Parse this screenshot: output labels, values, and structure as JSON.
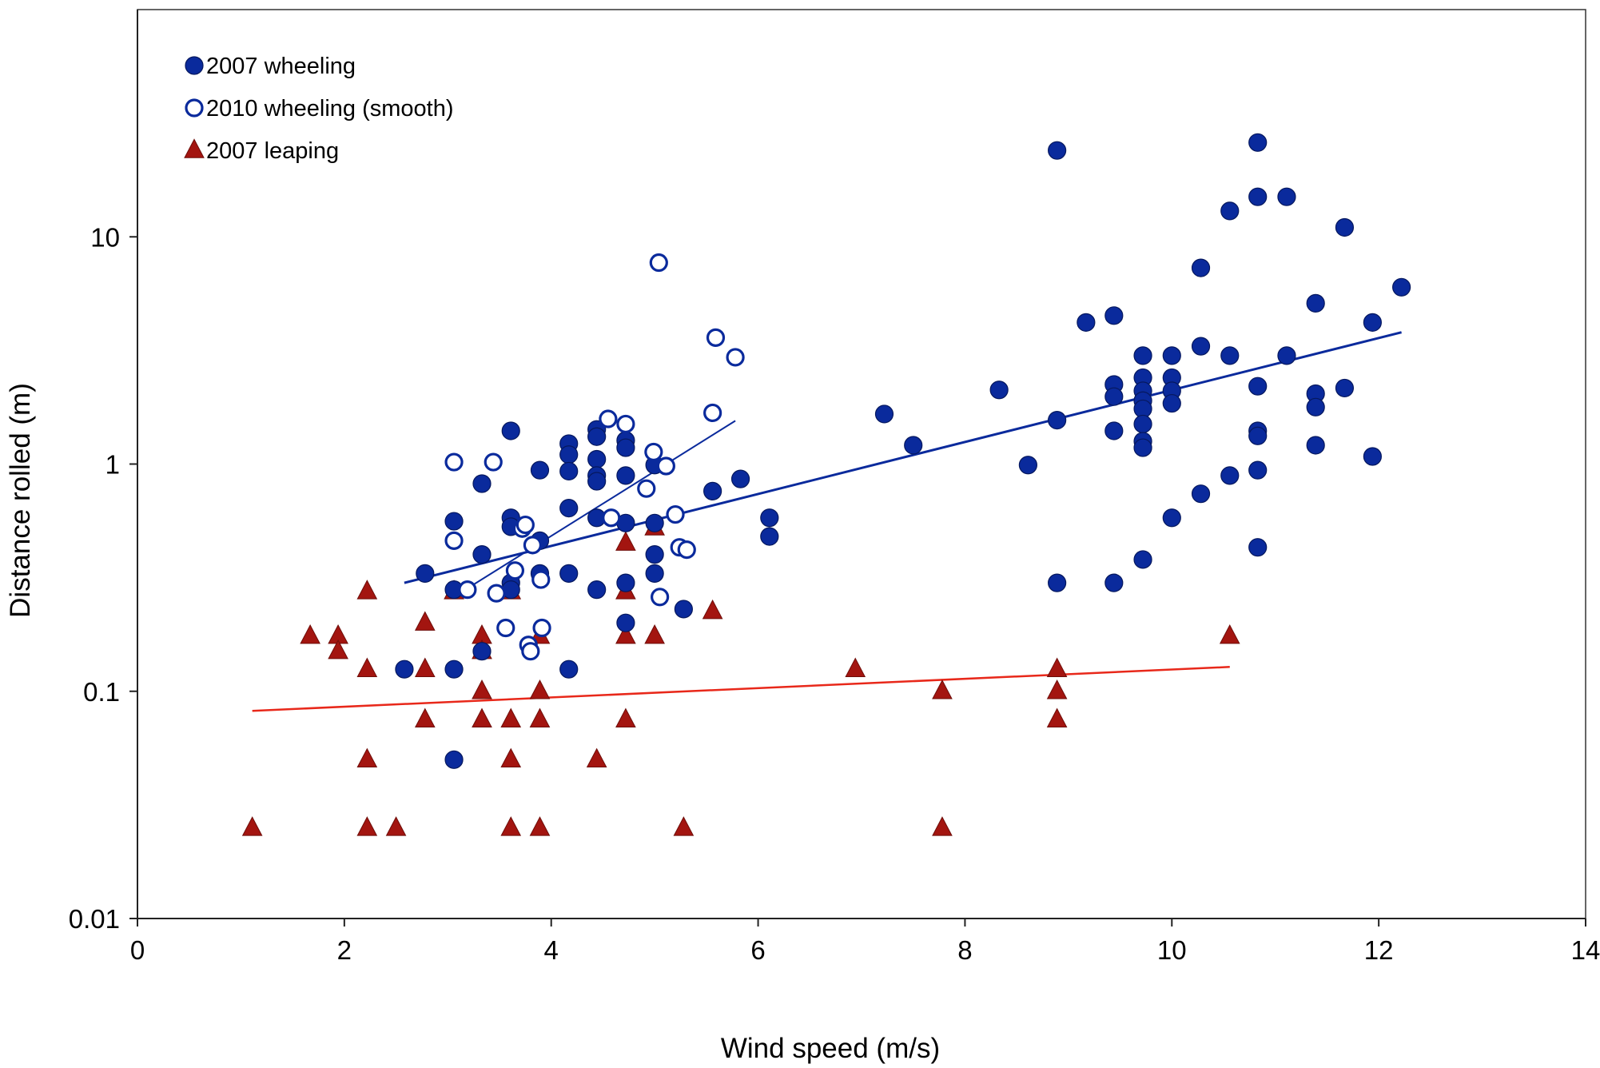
{
  "chart_data": {
    "type": "scatter",
    "xlabel": "Wind speed (m/s)",
    "ylabel": "Distance rolled (m)",
    "xlim": [
      0,
      14
    ],
    "ylim": [
      0.01,
      100
    ],
    "yscale": "log",
    "x_ticks": [
      0,
      2,
      4,
      6,
      8,
      10,
      12,
      14
    ],
    "x_tick_labels": [
      "0",
      "2",
      "4",
      "6",
      "8",
      "10",
      "12",
      "14"
    ],
    "y_ticks": [
      0.01,
      0.1,
      1,
      10
    ],
    "y_tick_labels": [
      "0.01",
      "0.1",
      "1",
      "10"
    ],
    "grid": false,
    "legend_position": "top-left",
    "series": [
      {
        "name": "2007 wheeling",
        "marker": "filled-circle",
        "color": "#0a2a9c",
        "points": [
          [
            2.58,
            0.125
          ],
          [
            2.78,
            0.33
          ],
          [
            3.06,
            0.125
          ],
          [
            3.06,
            0.05
          ],
          [
            3.06,
            0.28
          ],
          [
            3.06,
            0.56
          ],
          [
            3.33,
            0.82
          ],
          [
            3.33,
            0.4
          ],
          [
            3.33,
            0.15
          ],
          [
            3.61,
            1.4
          ],
          [
            3.61,
            0.58
          ],
          [
            3.61,
            0.53
          ],
          [
            3.61,
            0.3
          ],
          [
            3.61,
            0.28
          ],
          [
            3.89,
            0.94
          ],
          [
            3.89,
            0.46
          ],
          [
            3.89,
            0.33
          ],
          [
            4.17,
            1.23
          ],
          [
            4.17,
            1.1
          ],
          [
            4.17,
            0.93
          ],
          [
            4.17,
            0.64
          ],
          [
            4.17,
            0.33
          ],
          [
            4.17,
            0.125
          ],
          [
            4.44,
            1.42
          ],
          [
            4.44,
            1.32
          ],
          [
            4.44,
            1.05
          ],
          [
            4.44,
            0.89
          ],
          [
            4.44,
            0.84
          ],
          [
            4.44,
            0.58
          ],
          [
            4.44,
            0.28
          ],
          [
            4.72,
            1.27
          ],
          [
            4.72,
            1.18
          ],
          [
            4.72,
            0.89
          ],
          [
            4.72,
            0.55
          ],
          [
            4.72,
            0.3
          ],
          [
            4.72,
            0.2
          ],
          [
            5.0,
            0.99
          ],
          [
            5.0,
            0.55
          ],
          [
            5.0,
            0.4
          ],
          [
            5.0,
            0.33
          ],
          [
            5.28,
            0.23
          ],
          [
            5.56,
            0.76
          ],
          [
            5.83,
            0.86
          ],
          [
            6.11,
            0.58
          ],
          [
            6.11,
            0.48
          ],
          [
            7.22,
            1.66
          ],
          [
            7.5,
            1.21
          ],
          [
            8.33,
            2.12
          ],
          [
            8.61,
            0.99
          ],
          [
            8.89,
            24.0
          ],
          [
            8.89,
            1.56
          ],
          [
            8.89,
            0.3
          ],
          [
            9.17,
            4.2
          ],
          [
            9.44,
            4.5
          ],
          [
            9.44,
            2.24
          ],
          [
            9.44,
            1.98
          ],
          [
            9.44,
            1.4
          ],
          [
            9.44,
            0.3
          ],
          [
            9.72,
            3.0
          ],
          [
            9.72,
            2.4
          ],
          [
            9.72,
            2.1
          ],
          [
            9.72,
            1.9
          ],
          [
            9.72,
            1.75
          ],
          [
            9.72,
            1.5
          ],
          [
            9.72,
            1.26
          ],
          [
            9.72,
            1.18
          ],
          [
            9.72,
            0.38
          ],
          [
            10.0,
            3.0
          ],
          [
            10.0,
            2.4
          ],
          [
            10.0,
            2.1
          ],
          [
            10.0,
            1.85
          ],
          [
            10.0,
            0.58
          ],
          [
            10.28,
            7.3
          ],
          [
            10.28,
            3.3
          ],
          [
            10.28,
            0.74
          ],
          [
            10.56,
            13.0
          ],
          [
            10.56,
            3.0
          ],
          [
            10.56,
            0.89
          ],
          [
            10.83,
            26.0
          ],
          [
            10.83,
            15.0
          ],
          [
            10.83,
            2.2
          ],
          [
            10.83,
            1.4
          ],
          [
            10.83,
            1.33
          ],
          [
            10.83,
            0.94
          ],
          [
            10.83,
            0.43
          ],
          [
            11.11,
            15.0
          ],
          [
            11.11,
            3.0
          ],
          [
            11.39,
            5.1
          ],
          [
            11.39,
            2.04
          ],
          [
            11.39,
            1.78
          ],
          [
            11.39,
            1.21
          ],
          [
            11.67,
            11.0
          ],
          [
            11.67,
            2.16
          ],
          [
            11.94,
            4.2
          ],
          [
            11.94,
            1.08
          ],
          [
            12.22,
            6.0
          ]
        ],
        "trend": {
          "x_start": 2.58,
          "y_start": 0.3,
          "x_end": 12.22,
          "y_end": 3.8
        }
      },
      {
        "name": "2010 wheeling (smooth)",
        "marker": "open-circle",
        "color": "#0a2a9c",
        "points": [
          [
            3.06,
            1.02
          ],
          [
            3.06,
            0.46
          ],
          [
            3.19,
            0.28
          ],
          [
            3.44,
            1.02
          ],
          [
            3.47,
            0.27
          ],
          [
            3.56,
            0.19
          ],
          [
            3.65,
            0.34
          ],
          [
            3.72,
            0.52
          ],
          [
            3.75,
            0.54
          ],
          [
            3.78,
            0.16
          ],
          [
            3.8,
            0.15
          ],
          [
            3.82,
            0.44
          ],
          [
            3.9,
            0.31
          ],
          [
            3.91,
            0.19
          ],
          [
            4.55,
            1.58
          ],
          [
            4.58,
            0.58
          ],
          [
            4.72,
            1.5
          ],
          [
            4.92,
            0.78
          ],
          [
            4.99,
            1.13
          ],
          [
            5.04,
            7.7
          ],
          [
            5.05,
            0.26
          ],
          [
            5.11,
            0.98
          ],
          [
            5.2,
            0.6
          ],
          [
            5.24,
            0.43
          ],
          [
            5.31,
            0.42
          ],
          [
            5.56,
            1.68
          ],
          [
            5.59,
            3.6
          ],
          [
            5.78,
            2.95
          ]
        ],
        "trend": {
          "x_start": 3.17,
          "y_start": 0.28,
          "x_end": 5.78,
          "y_end": 1.55
        }
      },
      {
        "name": "2007 leaping",
        "marker": "filled-triangle",
        "color": "#a31510",
        "points": [
          [
            1.11,
            0.025
          ],
          [
            1.67,
            0.175
          ],
          [
            1.94,
            0.175
          ],
          [
            1.94,
            0.15
          ],
          [
            2.22,
            0.275
          ],
          [
            2.22,
            0.125
          ],
          [
            2.22,
            0.05
          ],
          [
            2.22,
            0.025
          ],
          [
            2.5,
            0.025
          ],
          [
            2.78,
            0.2
          ],
          [
            2.78,
            0.125
          ],
          [
            2.78,
            0.075
          ],
          [
            3.06,
            0.275
          ],
          [
            3.33,
            0.175
          ],
          [
            3.33,
            0.15
          ],
          [
            3.33,
            0.1
          ],
          [
            3.33,
            0.075
          ],
          [
            3.61,
            0.275
          ],
          [
            3.61,
            0.075
          ],
          [
            3.61,
            0.05
          ],
          [
            3.61,
            0.025
          ],
          [
            3.89,
            0.175
          ],
          [
            3.89,
            0.1
          ],
          [
            3.89,
            0.075
          ],
          [
            3.89,
            0.025
          ],
          [
            4.44,
            0.05
          ],
          [
            4.72,
            0.45
          ],
          [
            4.72,
            0.275
          ],
          [
            4.72,
            0.175
          ],
          [
            4.72,
            0.075
          ],
          [
            5.0,
            0.525
          ],
          [
            5.0,
            0.175
          ],
          [
            5.28,
            0.025
          ],
          [
            5.56,
            0.225
          ],
          [
            6.94,
            0.125
          ],
          [
            7.78,
            0.1
          ],
          [
            7.78,
            0.025
          ],
          [
            8.89,
            0.125
          ],
          [
            8.89,
            0.1
          ],
          [
            8.89,
            0.075
          ],
          [
            10.56,
            0.175
          ]
        ],
        "trend": {
          "x_start": 1.11,
          "y_start": 0.082,
          "x_end": 10.56,
          "y_end": 0.128
        }
      }
    ]
  }
}
